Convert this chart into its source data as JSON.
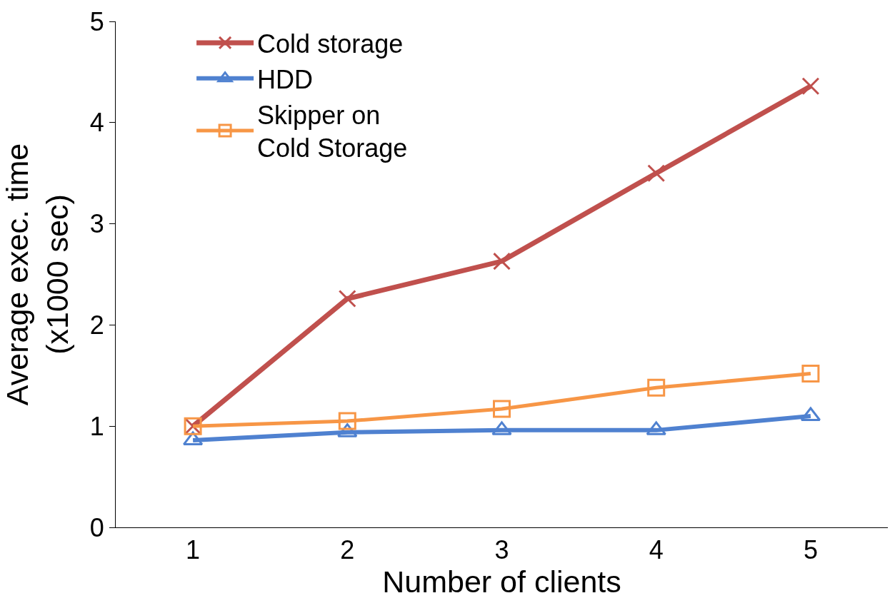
{
  "chart_data": {
    "type": "line",
    "xlabel": "Number of clients",
    "ylabel": "Average exec. time\n(x1000 sec)",
    "categories": [
      "1",
      "2",
      "3",
      "4",
      "5"
    ],
    "series": [
      {
        "name": "Cold storage",
        "color": "#c0504d",
        "marker": "cross",
        "values": [
          1.0,
          2.26,
          2.63,
          3.5,
          4.36
        ]
      },
      {
        "name": "HDD",
        "color": "#4f81d0",
        "marker": "triangle",
        "values": [
          0.86,
          0.94,
          0.96,
          0.96,
          1.1
        ]
      },
      {
        "name": "Skipper on\nCold Storage",
        "color": "#f79646",
        "marker": "square",
        "values": [
          1.0,
          1.05,
          1.17,
          1.38,
          1.52
        ]
      }
    ],
    "ylim": [
      0,
      5
    ],
    "yticks": [
      0,
      1,
      2,
      3,
      4,
      5
    ],
    "legend": "top left",
    "line_style": "solid"
  }
}
